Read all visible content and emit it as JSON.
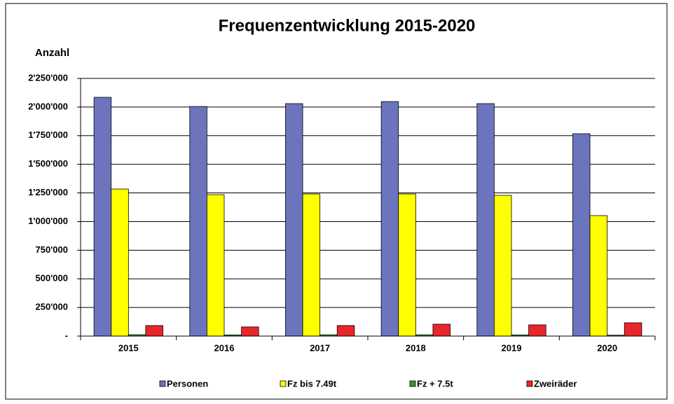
{
  "chart_data": {
    "type": "bar",
    "title": "Frequenzentwicklung 2015-2020",
    "y_label": "Anzahl",
    "categories": [
      "2015",
      "2016",
      "2017",
      "2018",
      "2019",
      "2020"
    ],
    "series": [
      {
        "name": "Personen",
        "color": "#6b74bd",
        "values": [
          2085000,
          2005000,
          2030000,
          2048000,
          2030000,
          1767000
        ]
      },
      {
        "name": "Fz bis 7.49t",
        "color": "#ffff00",
        "values": [
          1284000,
          1235000,
          1241000,
          1241000,
          1229000,
          1052000
        ]
      },
      {
        "name": "Fz + 7.5t",
        "color": "#339933",
        "values": [
          12000,
          10000,
          11000,
          11000,
          10000,
          8000
        ]
      },
      {
        "name": "Zweiräder",
        "color": "#e8262a",
        "values": [
          92000,
          80000,
          92000,
          104000,
          98000,
          116000
        ]
      }
    ],
    "ylim": [
      0,
      2250000
    ],
    "yticks": [
      {
        "value": 0,
        "label": "-"
      },
      {
        "value": 250000,
        "label": "250'000"
      },
      {
        "value": 500000,
        "label": "500'000"
      },
      {
        "value": 750000,
        "label": "750'000"
      },
      {
        "value": 1000000,
        "label": "1'000'000"
      },
      {
        "value": 1250000,
        "label": "1'250'000"
      },
      {
        "value": 1500000,
        "label": "1'500'000"
      },
      {
        "value": 1750000,
        "label": "1'750'000"
      },
      {
        "value": 2000000,
        "label": "2'000'000"
      },
      {
        "value": 2250000,
        "label": "2'250'000"
      }
    ],
    "grid": true,
    "legend": "bottom"
  }
}
